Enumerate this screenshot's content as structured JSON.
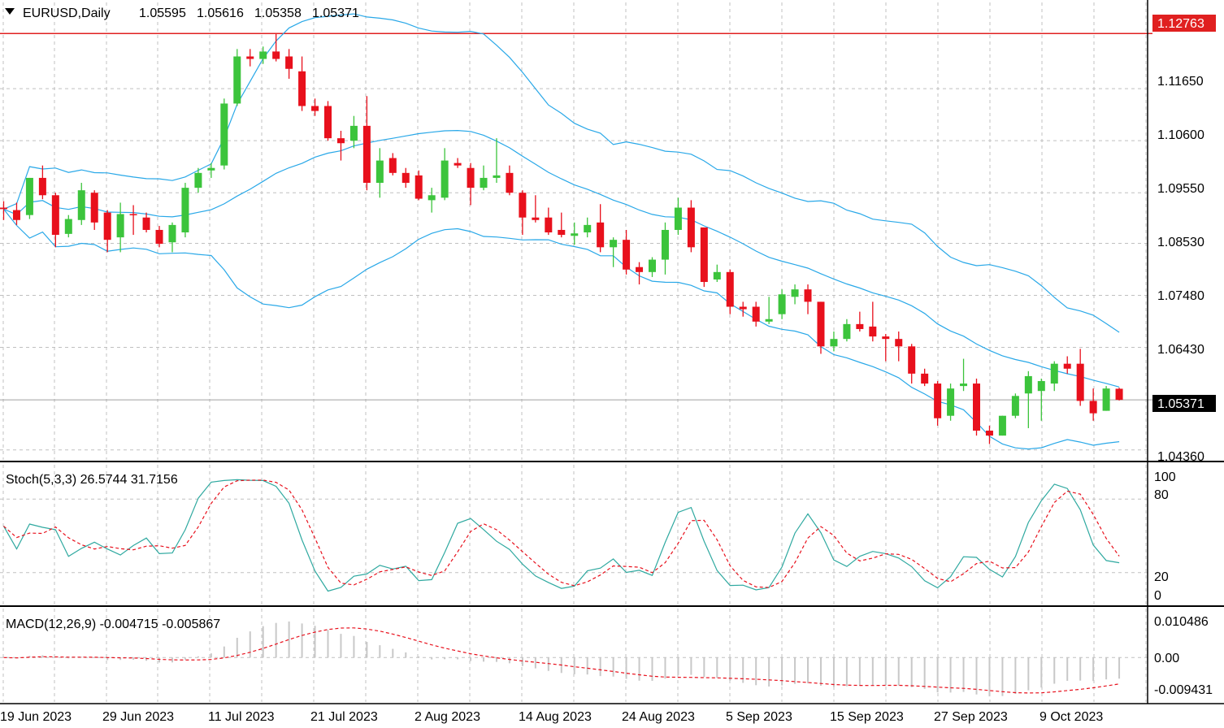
{
  "colors": {
    "background": "#ffffff",
    "grid": "#c0c0c0",
    "bull_candle": "#3cc43c",
    "bear_candle": "#e8101c",
    "bollinger": "#29a8e8",
    "stoch_main": "#2fa9a0",
    "stoch_signal": "#e8101c",
    "macd_hist": "#c8c8c8",
    "macd_signal": "#e8101c",
    "hline": "#e02020",
    "price_line": "#a0a0a0"
  },
  "price_panel": {
    "symbol_label": "EURUSD,Daily",
    "ohlc": [
      "1.05595",
      "1.05616",
      "1.05358",
      "1.05371"
    ],
    "hline_label": "1.12763",
    "current_label": "1.05371",
    "axis_ticks": [
      "1.11650",
      "1.10600",
      "1.09550",
      "1.08530",
      "1.07480",
      "1.06430",
      "1.04360"
    ]
  },
  "stoch_panel": {
    "label": "Stoch(5,3,3) 26.5744 31.7156",
    "axis_ticks": [
      "100",
      "80",
      "20",
      "0"
    ]
  },
  "macd_panel": {
    "label": "MACD(12,26,9) -0.004715 -0.005867",
    "axis_ticks": [
      "0.010486",
      "0.00",
      "-0.009431"
    ]
  },
  "date_labels": [
    "19 Jun 2023",
    "29 Jun 2023",
    "11 Jul 2023",
    "21 Jul 2023",
    "2 Aug 2023",
    "14 Aug 2023",
    "24 Aug 2023",
    "5 Sep 2023",
    "15 Sep 2023",
    "27 Sep 2023",
    "9 Oct 2023"
  ],
  "chart_data": {
    "type": "candlestick",
    "symbol": "EURUSD",
    "timeframe": "Daily",
    "y_range": [
      1.0416,
      1.1339
    ],
    "hline": 1.12763,
    "last_close": 1.05371,
    "candles": [
      {
        "d": "19 Jun",
        "o": 1.0925,
        "h": 1.0938,
        "l": 1.09,
        "c": 1.0922
      },
      {
        "d": "20 Jun",
        "o": 1.092,
        "h": 1.0935,
        "l": 1.089,
        "c": 1.09
      },
      {
        "d": "21 Jun",
        "o": 1.091,
        "h": 1.0985,
        "l": 1.0902,
        "c": 1.0985
      },
      {
        "d": "22 Jun",
        "o": 1.0985,
        "h": 1.101,
        "l": 1.0942,
        "c": 1.095
      },
      {
        "d": "23 Jun",
        "o": 1.095,
        "h": 1.0955,
        "l": 1.0845,
        "c": 1.087
      },
      {
        "d": "26 Jun",
        "o": 1.0872,
        "h": 1.091,
        "l": 1.0865,
        "c": 1.0902
      },
      {
        "d": "27 Jun",
        "o": 1.09,
        "h": 1.0975,
        "l": 1.089,
        "c": 1.096
      },
      {
        "d": "28 Jun",
        "o": 1.0955,
        "h": 1.096,
        "l": 1.088,
        "c": 1.0895
      },
      {
        "d": "29 Jun",
        "o": 1.0915,
        "h": 1.092,
        "l": 1.0835,
        "c": 1.086
      },
      {
        "d": "30 Jun",
        "o": 1.0865,
        "h": 1.0935,
        "l": 1.0835,
        "c": 1.0912
      },
      {
        "d": "3 Jul",
        "o": 1.0912,
        "h": 1.093,
        "l": 1.087,
        "c": 1.091
      },
      {
        "d": "4 Jul",
        "o": 1.0905,
        "h": 1.0915,
        "l": 1.0875,
        "c": 1.088
      },
      {
        "d": "5 Jul",
        "o": 1.088,
        "h": 1.0888,
        "l": 1.0845,
        "c": 1.0852
      },
      {
        "d": "6 Jul",
        "o": 1.0855,
        "h": 1.0895,
        "l": 1.0835,
        "c": 1.089
      },
      {
        "d": "7 Jul",
        "o": 1.0875,
        "h": 1.0975,
        "l": 1.0865,
        "c": 1.0965
      },
      {
        "d": "10 Jul",
        "o": 1.0965,
        "h": 1.1005,
        "l": 1.0955,
        "c": 1.0995
      },
      {
        "d": "11 Jul",
        "o": 1.1,
        "h": 1.1015,
        "l": 1.0985,
        "c": 1.1005
      },
      {
        "d": "12 Jul",
        "o": 1.101,
        "h": 1.1145,
        "l": 1.1002,
        "c": 1.1135
      },
      {
        "d": "13 Jul",
        "o": 1.1135,
        "h": 1.1245,
        "l": 1.113,
        "c": 1.123
      },
      {
        "d": "14 Jul",
        "o": 1.123,
        "h": 1.1245,
        "l": 1.121,
        "c": 1.1225
      },
      {
        "d": "17 Jul",
        "o": 1.1225,
        "h": 1.125,
        "l": 1.1215,
        "c": 1.124
      },
      {
        "d": "18 Jul",
        "o": 1.124,
        "h": 1.1275,
        "l": 1.122,
        "c": 1.1225
      },
      {
        "d": "19 Jul",
        "o": 1.123,
        "h": 1.1245,
        "l": 1.1185,
        "c": 1.1205
      },
      {
        "d": "20 Jul",
        "o": 1.12,
        "h": 1.123,
        "l": 1.112,
        "c": 1.113
      },
      {
        "d": "21 Jul",
        "o": 1.113,
        "h": 1.1145,
        "l": 1.111,
        "c": 1.112
      },
      {
        "d": "24 Jul",
        "o": 1.113,
        "h": 1.114,
        "l": 1.106,
        "c": 1.1065
      },
      {
        "d": "25 Jul",
        "o": 1.1065,
        "h": 1.108,
        "l": 1.102,
        "c": 1.1055
      },
      {
        "d": "26 Jul",
        "o": 1.106,
        "h": 1.111,
        "l": 1.1045,
        "c": 1.109
      },
      {
        "d": "27 Jul",
        "o": 1.109,
        "h": 1.115,
        "l": 1.096,
        "c": 1.0975
      },
      {
        "d": "28 Jul",
        "o": 1.0975,
        "h": 1.1045,
        "l": 1.0945,
        "c": 1.102
      },
      {
        "d": "31 Jul",
        "o": 1.1025,
        "h": 1.1035,
        "l": 1.099,
        "c": 1.0995
      },
      {
        "d": "1 Aug",
        "o": 1.0995,
        "h": 1.1005,
        "l": 1.0965,
        "c": 1.0975
      },
      {
        "d": "2 Aug",
        "o": 1.099,
        "h": 1.1,
        "l": 1.094,
        "c": 1.0943
      },
      {
        "d": "3 Aug",
        "o": 1.094,
        "h": 1.0965,
        "l": 1.0915,
        "c": 1.095
      },
      {
        "d": "4 Aug",
        "o": 1.0945,
        "h": 1.1045,
        "l": 1.094,
        "c": 1.102
      },
      {
        "d": "7 Aug",
        "o": 1.1015,
        "h": 1.1025,
        "l": 1.1005,
        "c": 1.101
      },
      {
        "d": "8 Aug",
        "o": 1.1005,
        "h": 1.1015,
        "l": 1.093,
        "c": 1.0965
      },
      {
        "d": "9 Aug",
        "o": 1.0965,
        "h": 1.101,
        "l": 1.096,
        "c": 1.0985
      },
      {
        "d": "10 Aug",
        "o": 1.0985,
        "h": 1.1065,
        "l": 1.0975,
        "c": 1.099
      },
      {
        "d": "11 Aug",
        "o": 1.0995,
        "h": 1.101,
        "l": 1.095,
        "c": 1.0955
      },
      {
        "d": "14 Aug",
        "o": 1.0955,
        "h": 1.096,
        "l": 1.087,
        "c": 1.0905
      },
      {
        "d": "15 Aug",
        "o": 1.0905,
        "h": 1.095,
        "l": 1.0895,
        "c": 1.09
      },
      {
        "d": "16 Aug",
        "o": 1.0905,
        "h": 1.0925,
        "l": 1.087,
        "c": 1.0875
      },
      {
        "d": "17 Aug",
        "o": 1.088,
        "h": 1.0915,
        "l": 1.0865,
        "c": 1.087
      },
      {
        "d": "18 Aug",
        "o": 1.0868,
        "h": 1.0895,
        "l": 1.085,
        "c": 1.0873
      },
      {
        "d": "21 Aug",
        "o": 1.0875,
        "h": 1.0905,
        "l": 1.0865,
        "c": 1.089
      },
      {
        "d": "22 Aug",
        "o": 1.0895,
        "h": 1.0932,
        "l": 1.0835,
        "c": 1.0845
      },
      {
        "d": "23 Aug",
        "o": 1.0845,
        "h": 1.0865,
        "l": 1.0805,
        "c": 1.086
      },
      {
        "d": "24 Aug",
        "o": 1.086,
        "h": 1.088,
        "l": 1.079,
        "c": 1.08
      },
      {
        "d": "25 Aug",
        "o": 1.0805,
        "h": 1.0815,
        "l": 1.077,
        "c": 1.0795
      },
      {
        "d": "28 Aug",
        "o": 1.0795,
        "h": 1.0825,
        "l": 1.0785,
        "c": 1.082
      },
      {
        "d": "29 Aug",
        "o": 1.082,
        "h": 1.0895,
        "l": 1.079,
        "c": 1.088
      },
      {
        "d": "30 Aug",
        "o": 1.088,
        "h": 1.0945,
        "l": 1.087,
        "c": 1.0925
      },
      {
        "d": "31 Aug",
        "o": 1.0925,
        "h": 1.094,
        "l": 1.0835,
        "c": 1.0845
      },
      {
        "d": "1 Sep",
        "o": 1.0885,
        "h": 1.088,
        "l": 1.0765,
        "c": 1.0775
      },
      {
        "d": "4 Sep",
        "o": 1.078,
        "h": 1.081,
        "l": 1.0775,
        "c": 1.0795
      },
      {
        "d": "5 Sep",
        "o": 1.0795,
        "h": 1.08,
        "l": 1.071,
        "c": 1.0725
      },
      {
        "d": "6 Sep",
        "o": 1.0725,
        "h": 1.0735,
        "l": 1.0705,
        "c": 1.072
      },
      {
        "d": "7 Sep",
        "o": 1.0725,
        "h": 1.0735,
        "l": 1.0685,
        "c": 1.0695
      },
      {
        "d": "8 Sep",
        "o": 1.0695,
        "h": 1.0745,
        "l": 1.069,
        "c": 1.07
      },
      {
        "d": "11 Sep",
        "o": 1.071,
        "h": 1.076,
        "l": 1.07,
        "c": 1.075
      },
      {
        "d": "12 Sep",
        "o": 1.0745,
        "h": 1.077,
        "l": 1.073,
        "c": 1.076
      },
      {
        "d": "13 Sep",
        "o": 1.076,
        "h": 1.077,
        "l": 1.071,
        "c": 1.0735
      },
      {
        "d": "14 Sep",
        "o": 1.0735,
        "h": 1.0735,
        "l": 1.063,
        "c": 1.0645
      },
      {
        "d": "15 Sep",
        "o": 1.0645,
        "h": 1.0675,
        "l": 1.0635,
        "c": 1.066
      },
      {
        "d": "18 Sep",
        "o": 1.066,
        "h": 1.07,
        "l": 1.0655,
        "c": 1.069
      },
      {
        "d": "19 Sep",
        "o": 1.069,
        "h": 1.0715,
        "l": 1.0675,
        "c": 1.068
      },
      {
        "d": "20 Sep",
        "o": 1.0685,
        "h": 1.0735,
        "l": 1.0655,
        "c": 1.0665
      },
      {
        "d": "21 Sep",
        "o": 1.0665,
        "h": 1.067,
        "l": 1.0615,
        "c": 1.066
      },
      {
        "d": "22 Sep",
        "o": 1.066,
        "h": 1.0675,
        "l": 1.0615,
        "c": 1.0645
      },
      {
        "d": "25 Sep",
        "o": 1.0645,
        "h": 1.065,
        "l": 1.057,
        "c": 1.059
      },
      {
        "d": "26 Sep",
        "o": 1.059,
        "h": 1.06,
        "l": 1.0565,
        "c": 1.057
      },
      {
        "d": "27 Sep",
        "o": 1.057,
        "h": 1.0575,
        "l": 1.0485,
        "c": 1.05
      },
      {
        "d": "28 Sep",
        "o": 1.0505,
        "h": 1.057,
        "l": 1.0495,
        "c": 1.056
      },
      {
        "d": "29 Sep",
        "o": 1.0565,
        "h": 1.062,
        "l": 1.0555,
        "c": 1.057
      },
      {
        "d": "2 Oct",
        "o": 1.057,
        "h": 1.058,
        "l": 1.0465,
        "c": 1.0475
      },
      {
        "d": "3 Oct",
        "o": 1.0475,
        "h": 1.0485,
        "l": 1.0448,
        "c": 1.0465
      },
      {
        "d": "4 Oct",
        "o": 1.0465,
        "h": 1.0505,
        "l": 1.0465,
        "c": 1.0505
      },
      {
        "d": "5 Oct",
        "o": 1.0505,
        "h": 1.055,
        "l": 1.05,
        "c": 1.0545
      },
      {
        "d": "6 Oct",
        "o": 1.055,
        "h": 1.0595,
        "l": 1.048,
        "c": 1.0585
      },
      {
        "d": "9 Oct",
        "o": 1.0555,
        "h": 1.058,
        "l": 1.0495,
        "c": 1.0575
      },
      {
        "d": "10 Oct",
        "o": 1.057,
        "h": 1.0615,
        "l": 1.0555,
        "c": 1.061
      },
      {
        "d": "11 Oct",
        "o": 1.061,
        "h": 1.0625,
        "l": 1.059,
        "c": 1.06
      },
      {
        "d": "12 Oct",
        "o": 1.061,
        "h": 1.064,
        "l": 1.0525,
        "c": 1.0535
      },
      {
        "d": "13 Oct",
        "o": 1.0535,
        "h": 1.056,
        "l": 1.0495,
        "c": 1.051
      },
      {
        "d": "16 Oct",
        "o": 1.0515,
        "h": 1.0565,
        "l": 1.0515,
        "c": 1.056
      },
      {
        "d": "17 Oct",
        "o": 1.05595,
        "h": 1.05616,
        "l": 1.05358,
        "c": 1.05371
      }
    ],
    "stoch_range": [
      0,
      100
    ],
    "stoch_levels": [
      20,
      80
    ],
    "macd_range": [
      -0.0099,
      0.0109
    ],
    "macd_levels": [
      0.0
    ]
  }
}
